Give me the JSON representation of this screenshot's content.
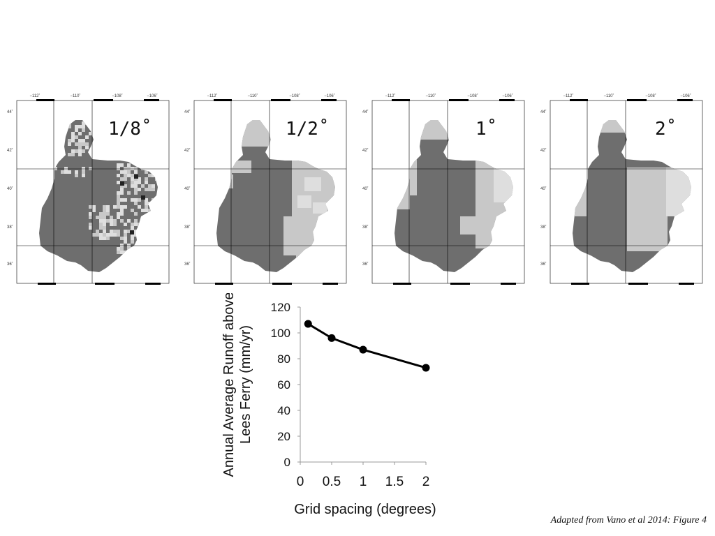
{
  "maps": [
    {
      "label": "1/8˚",
      "lon_ticks": [
        "−112˚",
        "−110˚",
        "−108˚",
        "−106˚"
      ],
      "lat_ticks": [
        "44˚",
        "42˚",
        "40˚",
        "38˚",
        "36˚"
      ]
    },
    {
      "label": "1/2˚",
      "lon_ticks": [
        "−112˚",
        "−110˚",
        "−108˚",
        "−106˚"
      ],
      "lat_ticks": [
        "44˚",
        "42˚",
        "40˚",
        "38˚",
        "36˚"
      ]
    },
    {
      "label": "1˚",
      "lon_ticks": [
        "−112˚",
        "−110˚",
        "−108˚",
        "−106˚"
      ],
      "lat_ticks": [
        "44˚",
        "42˚",
        "40˚",
        "38˚",
        "36˚"
      ]
    },
    {
      "label": "2˚",
      "lon_ticks": [
        "−112˚",
        "−110˚",
        "−108˚",
        "−106˚"
      ],
      "lat_ticks": [
        "44˚",
        "42˚",
        "40˚",
        "38˚",
        "36˚"
      ]
    }
  ],
  "colors": {
    "basin_dark": "#6e6e6e",
    "basin_light": "#c8c8c8",
    "basin_lighter": "#dedede",
    "line": "#000000"
  },
  "chart_data": {
    "type": "line",
    "x": [
      0.125,
      0.5,
      1,
      2
    ],
    "values": [
      107,
      96,
      87,
      73
    ],
    "xlabel": "Grid spacing (degrees)",
    "ylabel_line1": "Annual Average Runoff above",
    "ylabel_line2": "Lees Ferry (mm/yr)",
    "xlim": [
      0,
      2
    ],
    "ylim": [
      0,
      120
    ],
    "x_ticks": [
      0,
      0.5,
      1,
      1.5,
      2
    ],
    "x_tick_labels": [
      "0",
      "0.5",
      "1",
      "1.5",
      "2"
    ],
    "y_ticks": [
      0,
      20,
      40,
      60,
      80,
      100,
      120
    ],
    "y_tick_labels": [
      "0",
      "20",
      "40",
      "60",
      "80",
      "100",
      "120"
    ],
    "grid": false
  },
  "caption": "Adapted from Vano et al 2014: Figure 4"
}
